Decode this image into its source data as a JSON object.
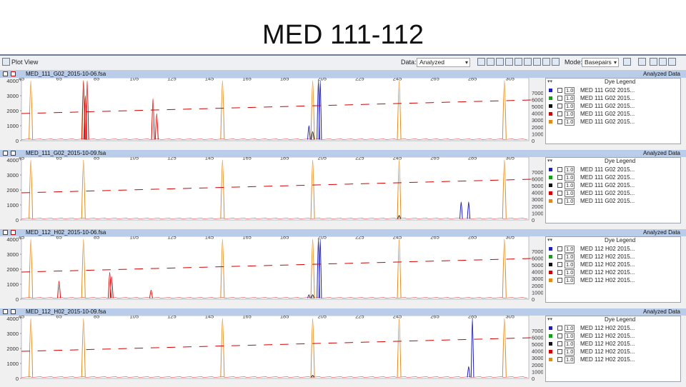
{
  "slide_title": "MED 111-112",
  "window": {
    "title": "Plot View",
    "data_label": "Data:",
    "data_value": "Analyzed",
    "mode_label": "Mode:",
    "mode_value": "Basepairs"
  },
  "x_ticks": [
    "45",
    "65",
    "85",
    "105",
    "125",
    "145",
    "165",
    "185",
    "205",
    "225",
    "245",
    "265",
    "285",
    "305"
  ],
  "left_ticks": [
    "4000",
    "3000",
    "2000",
    "1000",
    "0"
  ],
  "right_ticks": [
    "7000",
    "6000",
    "5000",
    "4000",
    "3000",
    "2000",
    "1000",
    "0"
  ],
  "colors": {
    "blue": "#1f1fb4",
    "green": "#1a9a1a",
    "black": "#111111",
    "red": "#d40000",
    "orange": "#e08a1a"
  },
  "panels": [
    {
      "file": "MED_111_G02_2015-10-06.fsa",
      "analyzed": "Analyzed Data",
      "legend_title": "Dye Legend",
      "legend_rows": [
        {
          "color": "#1f1fb4",
          "value": "1.0",
          "name": "MED 111 G02 2015..."
        },
        {
          "color": "#1a9a1a",
          "value": "1.0",
          "name": "MED 111 G02 2015..."
        },
        {
          "color": "#111111",
          "value": "1.0",
          "name": "MED 111 G02 2015..."
        },
        {
          "color": "#d40000",
          "value": "1.0",
          "name": "MED 111 G02 2015..."
        },
        {
          "color": "#e08a1a",
          "value": "1.0",
          "name": "MED 111 G02 2015..."
        }
      ]
    },
    {
      "file": "MED_111_G02_2015-10-09.fsa",
      "analyzed": "Analyzed Data",
      "legend_title": "Dye Legend",
      "legend_rows": [
        {
          "color": "#1f1fb4",
          "value": "1.0",
          "name": "MED 111 G02 2015..."
        },
        {
          "color": "#1a9a1a",
          "value": "1.0",
          "name": "MED 111 G02 2015..."
        },
        {
          "color": "#111111",
          "value": "1.0",
          "name": "MED 111 G02 2015..."
        },
        {
          "color": "#d40000",
          "value": "1.0",
          "name": "MED 111 G02 2015..."
        },
        {
          "color": "#e08a1a",
          "value": "1.0",
          "name": "MED 111 G02 2015..."
        }
      ]
    },
    {
      "file": "MED_112_H02_2015-10-06.fsa",
      "analyzed": "Analyzed Data",
      "legend_title": "Dye Legend",
      "legend_rows": [
        {
          "color": "#1f1fb4",
          "value": "1.0",
          "name": "MED 112 H02 2015..."
        },
        {
          "color": "#1a9a1a",
          "value": "1.0",
          "name": "MED 112 H02 2015..."
        },
        {
          "color": "#111111",
          "value": "1.0",
          "name": "MED 112 H02 2015..."
        },
        {
          "color": "#d40000",
          "value": "1.0",
          "name": "MED 112 H02 2015..."
        },
        {
          "color": "#e08a1a",
          "value": "1.0",
          "name": "MED 112 H02 2015..."
        }
      ]
    },
    {
      "file": "MED_112_H02_2015-10-09.fsa",
      "analyzed": "Analyzed Data",
      "legend_title": "Dye Legend",
      "legend_rows": [
        {
          "color": "#1f1fb4",
          "value": "1.0",
          "name": "MED 112 H02 2015..."
        },
        {
          "color": "#1a9a1a",
          "value": "1.0",
          "name": "MED 112 H02 2015..."
        },
        {
          "color": "#111111",
          "value": "1.0",
          "name": "MED 112 H02 2015..."
        },
        {
          "color": "#d40000",
          "value": "1.0",
          "name": "MED 112 H02 2015..."
        },
        {
          "color": "#e08a1a",
          "value": "1.0",
          "name": "MED 112 H02 2015..."
        }
      ]
    }
  ],
  "traces": [
    {
      "orange_peaks": [
        50,
        78,
        152,
        200,
        246,
        302
      ],
      "blue_peaks": [
        {
          "bp": 198,
          "h": 1000
        },
        {
          "bp": 203,
          "h": 4000
        },
        {
          "bp": 204,
          "h": 4000
        }
      ],
      "red_peaks": [
        {
          "bp": 78,
          "h": 4000
        },
        {
          "bp": 79,
          "h": 3000
        },
        {
          "bp": 80,
          "h": 4000
        },
        {
          "bp": 115,
          "h": 2800
        },
        {
          "bp": 117,
          "h": 1800
        }
      ],
      "black_peaks": [
        {
          "bp": 200,
          "h": 600
        }
      ]
    },
    {
      "orange_peaks": [
        50,
        78,
        152,
        200,
        246,
        302
      ],
      "blue_peaks": [
        {
          "bp": 279,
          "h": 1200
        },
        {
          "bp": 283,
          "h": 1200
        }
      ],
      "red_peaks": [],
      "black_peaks": [
        {
          "bp": 246,
          "h": 300
        }
      ]
    },
    {
      "orange_peaks": [
        50,
        78,
        152,
        200,
        246,
        302
      ],
      "blue_peaks": [
        {
          "bp": 198,
          "h": 300
        },
        {
          "bp": 203,
          "h": 4000
        },
        {
          "bp": 204,
          "h": 4000
        }
      ],
      "red_peaks": [
        {
          "bp": 65,
          "h": 1200
        },
        {
          "bp": 92,
          "h": 1800
        },
        {
          "bp": 93,
          "h": 1500
        },
        {
          "bp": 114,
          "h": 600
        }
      ],
      "black_peaks": [
        {
          "bp": 200,
          "h": 300
        }
      ]
    },
    {
      "orange_peaks": [
        50,
        78,
        152,
        200,
        246,
        302
      ],
      "blue_peaks": [
        {
          "bp": 285,
          "h": 4000
        },
        {
          "bp": 283,
          "h": 800
        }
      ],
      "red_peaks": [],
      "black_peaks": [
        {
          "bp": 200,
          "h": 200
        }
      ]
    }
  ]
}
